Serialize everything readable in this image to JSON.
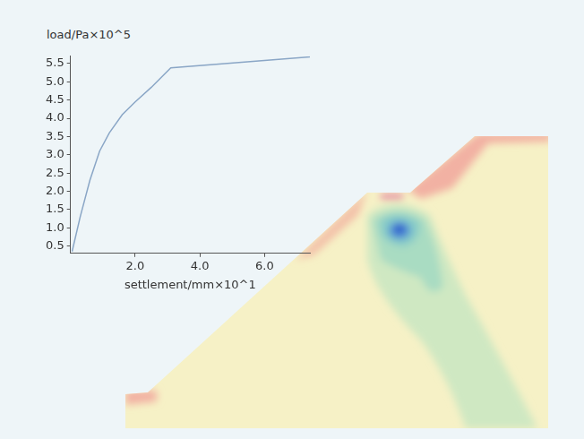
{
  "chart_data": {
    "type": "line",
    "x_label": "settlement/mm×10^1",
    "y_label": "load/Pa×10^5",
    "x": [
      0.05,
      0.3,
      0.6,
      0.9,
      1.2,
      1.6,
      2.0,
      2.5,
      3.1,
      7.4
    ],
    "values": [
      0.35,
      1.3,
      2.3,
      3.1,
      3.6,
      4.1,
      4.45,
      4.85,
      5.38,
      5.68
    ],
    "color": "#8aa6c6",
    "xlim": [
      0,
      7.4
    ],
    "xticks": [
      {
        "value": 2,
        "label": "2.0"
      },
      {
        "value": 4,
        "label": "4.0"
      },
      {
        "value": 6,
        "label": "6.0"
      }
    ],
    "ylim": [
      0.3,
      5.7
    ],
    "yticks": [
      0.5,
      {
        "value": 1,
        "label": "1.0"
      },
      1.5,
      {
        "value": 2,
        "label": "2.0"
      },
      2.5,
      {
        "value": 3,
        "label": "3.0"
      },
      3.5,
      {
        "value": 4,
        "label": "4.0"
      },
      4.5,
      {
        "value": 5,
        "label": "5.0"
      },
      5.5
    ],
    "grid": false
  }
}
